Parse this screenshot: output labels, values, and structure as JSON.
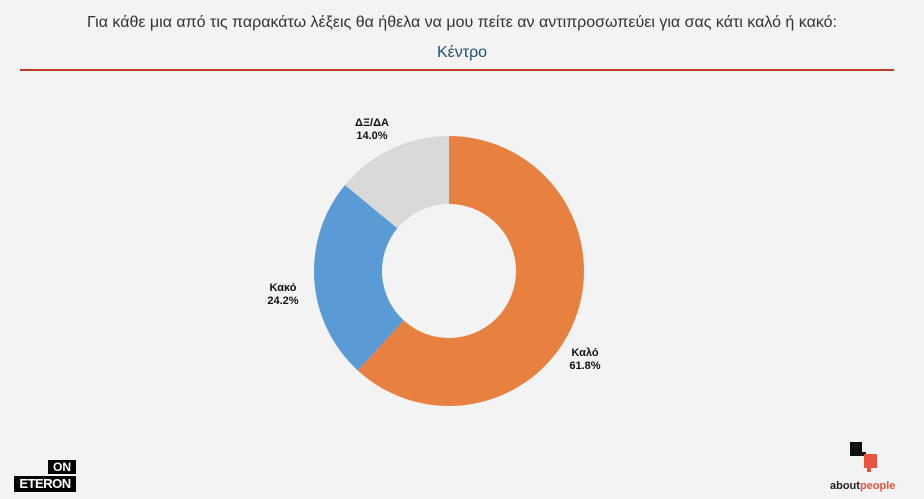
{
  "header": {
    "question": "Για κάθε μια από τις παρακάτω λέξεις θα ήθελα να μου πείτε αν αντιπροσωπεύει για σας κάτι καλό ή κακό:",
    "subtitle": "Κέντρο"
  },
  "colors": {
    "rule": "#c0392b",
    "subtitle": "#1f4e79"
  },
  "chart_data": {
    "type": "pie",
    "donut": true,
    "slices": [
      {
        "label": "Καλό",
        "value": 61.8,
        "display": "61.8%",
        "color": "#e8803f"
      },
      {
        "label": "Κακό",
        "value": 24.2,
        "display": "24.2%",
        "color": "#5b9bd5"
      },
      {
        "label": "ΔΞ/ΔΑ",
        "value": 14.0,
        "display": "14.0%",
        "color": "#d9d9d9"
      }
    ]
  },
  "logos": {
    "left_on": "ON",
    "left_eteron": "ETERON",
    "right_about": "about",
    "right_people": "people"
  }
}
